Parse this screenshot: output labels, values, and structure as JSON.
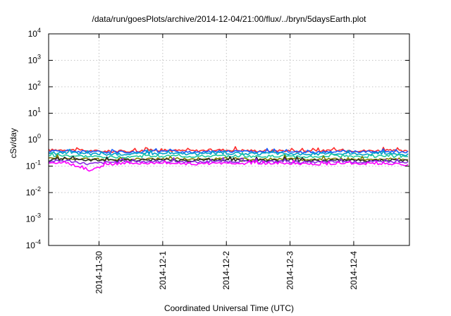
{
  "chart_data": {
    "type": "line",
    "title": "/data/run/goesPlots/archive/2014-12-04/21:00/flux/../bryn/5daysEarth.plot",
    "xlabel": "Coordinated Universal Time (UTC)",
    "ylabel": "cSv/day",
    "x_range": [
      "2014-11-29T05:00",
      "2014-12-04T21:00"
    ],
    "x_tick_labels": [
      "2014-11-30",
      "2014-12-1",
      "2014-12-2",
      "2014-12-3",
      "2014-12-4"
    ],
    "x_ticks": [
      "2014-11-30",
      "2014-12-01",
      "2014-12-02",
      "2014-12-03",
      "2014-12-04"
    ],
    "y_scale": "log",
    "ylim": [
      0.0001,
      10000
    ],
    "y_ticks": [
      {
        "base": "10",
        "exp": "-4",
        "value": 0.0001
      },
      {
        "base": "10",
        "exp": "-3",
        "value": 0.001
      },
      {
        "base": "10",
        "exp": "-2",
        "value": 0.01
      },
      {
        "base": "10",
        "exp": "-1",
        "value": 0.1
      },
      {
        "base": "10",
        "exp": "0",
        "value": 1
      },
      {
        "base": "10",
        "exp": "1",
        "value": 10
      },
      {
        "base": "10",
        "exp": "2",
        "value": 100
      },
      {
        "base": "10",
        "exp": "3",
        "value": 1000
      },
      {
        "base": "10",
        "exp": "4",
        "value": 10000
      }
    ],
    "grid": true,
    "legend": false,
    "x": [
      "2014-11-29T05:00",
      "2014-11-29T12:00",
      "2014-11-29T20:00",
      "2014-11-30T04:00",
      "2014-11-30T12:00",
      "2014-11-30T20:00",
      "2014-12-01T04:00",
      "2014-12-01T12:00",
      "2014-12-01T20:00",
      "2014-12-02T04:00",
      "2014-12-02T12:00",
      "2014-12-02T20:00",
      "2014-12-03T04:00",
      "2014-12-03T12:00",
      "2014-12-03T20:00",
      "2014-12-04T04:00",
      "2014-12-04T12:00",
      "2014-12-04T21:00"
    ],
    "series": [
      {
        "color": "#ff2a2a",
        "values": [
          0.4,
          0.42,
          0.38,
          0.36,
          0.37,
          0.4,
          0.39,
          0.38,
          0.41,
          0.4,
          0.38,
          0.39,
          0.37,
          0.38,
          0.4,
          0.38,
          0.39,
          0.36
        ]
      },
      {
        "color": "#1a5cff",
        "values": [
          0.36,
          0.38,
          0.34,
          0.33,
          0.34,
          0.36,
          0.35,
          0.34,
          0.37,
          0.36,
          0.34,
          0.35,
          0.33,
          0.34,
          0.36,
          0.34,
          0.35,
          0.32
        ]
      },
      {
        "color": "#00a0c8",
        "values": [
          0.3,
          0.32,
          0.29,
          0.28,
          0.29,
          0.3,
          0.3,
          0.29,
          0.31,
          0.3,
          0.29,
          0.3,
          0.28,
          0.29,
          0.3,
          0.29,
          0.3,
          0.27
        ]
      },
      {
        "color": "#20c8a0",
        "values": [
          0.24,
          0.25,
          0.23,
          0.22,
          0.23,
          0.24,
          0.24,
          0.23,
          0.24,
          0.24,
          0.23,
          0.24,
          0.22,
          0.23,
          0.24,
          0.23,
          0.24,
          0.22
        ]
      },
      {
        "color": "#808000",
        "values": [
          0.19,
          0.2,
          0.18,
          0.18,
          0.18,
          0.19,
          0.19,
          0.18,
          0.19,
          0.19,
          0.18,
          0.19,
          0.18,
          0.18,
          0.19,
          0.18,
          0.19,
          0.18
        ]
      },
      {
        "color": "#2a2a2a",
        "values": [
          0.17,
          0.18,
          0.17,
          0.16,
          0.17,
          0.17,
          0.17,
          0.16,
          0.17,
          0.17,
          0.16,
          0.17,
          0.16,
          0.16,
          0.17,
          0.16,
          0.17,
          0.16
        ]
      },
      {
        "color": "#8a2be2",
        "values": [
          0.15,
          0.16,
          0.12,
          0.14,
          0.15,
          0.15,
          0.15,
          0.14,
          0.15,
          0.15,
          0.14,
          0.15,
          0.14,
          0.14,
          0.15,
          0.14,
          0.15,
          0.13
        ]
      },
      {
        "color": "#ff00ff",
        "values": [
          0.13,
          0.14,
          0.065,
          0.12,
          0.13,
          0.13,
          0.13,
          0.12,
          0.13,
          0.13,
          0.12,
          0.13,
          0.12,
          0.12,
          0.13,
          0.12,
          0.13,
          0.11
        ]
      }
    ]
  }
}
